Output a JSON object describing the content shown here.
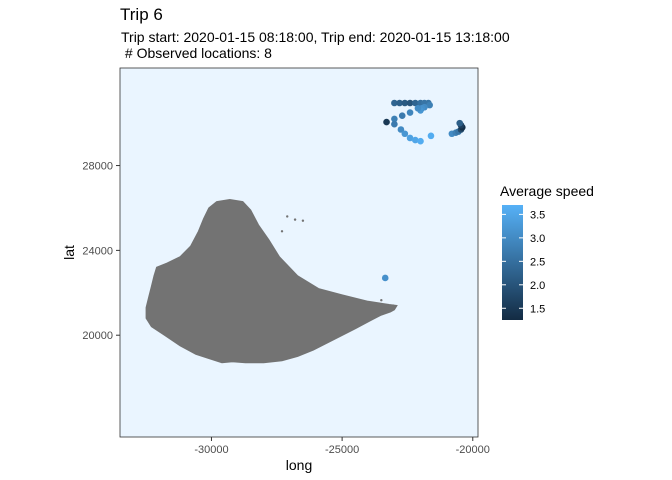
{
  "chart": {
    "title": "Trip 6",
    "subtitle_line1": "Trip start: 2020-01-15 08:18:00, Trip end: 2020-01-15 13:18:00",
    "subtitle_line2": " # Observed locations: 8"
  },
  "chart_data": {
    "type": "scatter",
    "title": "Trip 6",
    "subtitle": "Trip start: 2020-01-15 08:18:00, Trip end: 2020-01-15 13:18:00\n # Observed locations: 8",
    "xlabel": "long",
    "ylabel": "lat",
    "xlim": [
      -33500,
      -19800
    ],
    "ylim": [
      15200,
      32600
    ],
    "xticks": [
      -30000,
      -25000,
      -20000
    ],
    "yticks": [
      20000,
      24000,
      28000
    ],
    "panel_background": "#eaf5ff",
    "grid": false,
    "legend": {
      "title": "Average speed",
      "position": "right",
      "ticks": [
        1.5,
        2.0,
        2.5,
        3.0,
        3.5
      ],
      "range": [
        1.25,
        3.7
      ],
      "color_low": "#132b43",
      "color_high": "#56b1f7"
    },
    "land_color": "#737373",
    "points": [
      {
        "x": -23000,
        "y": 30950,
        "speed": 2.3
      },
      {
        "x": -22800,
        "y": 30950,
        "speed": 2.2
      },
      {
        "x": -22600,
        "y": 30950,
        "speed": 2.1
      },
      {
        "x": -22400,
        "y": 30950,
        "speed": 2.0
      },
      {
        "x": -22200,
        "y": 30950,
        "speed": 2.3
      },
      {
        "x": -22000,
        "y": 30950,
        "speed": 2.5
      },
      {
        "x": -21850,
        "y": 30950,
        "speed": 2.6
      },
      {
        "x": -21700,
        "y": 30950,
        "speed": 2.6
      },
      {
        "x": -21650,
        "y": 30850,
        "speed": 2.8
      },
      {
        "x": -21850,
        "y": 30750,
        "speed": 3.0
      },
      {
        "x": -21950,
        "y": 30700,
        "speed": 3.1
      },
      {
        "x": -22000,
        "y": 30600,
        "speed": 3.2
      },
      {
        "x": -22100,
        "y": 30700,
        "speed": 3.0
      },
      {
        "x": -22400,
        "y": 30500,
        "speed": 2.9
      },
      {
        "x": -22700,
        "y": 30350,
        "speed": 2.7
      },
      {
        "x": -23000,
        "y": 30200,
        "speed": 2.8
      },
      {
        "x": -23300,
        "y": 30050,
        "speed": 1.5
      },
      {
        "x": -23000,
        "y": 29950,
        "speed": 2.7
      },
      {
        "x": -22750,
        "y": 29700,
        "speed": 3.0
      },
      {
        "x": -22600,
        "y": 29500,
        "speed": 3.2
      },
      {
        "x": -22400,
        "y": 29300,
        "speed": 3.4
      },
      {
        "x": -22200,
        "y": 29200,
        "speed": 3.5
      },
      {
        "x": -22000,
        "y": 29150,
        "speed": 3.6
      },
      {
        "x": -21600,
        "y": 29400,
        "speed": 3.6
      },
      {
        "x": -20800,
        "y": 29500,
        "speed": 3.0
      },
      {
        "x": -20650,
        "y": 29550,
        "speed": 2.8
      },
      {
        "x": -20550,
        "y": 29600,
        "speed": 2.6
      },
      {
        "x": -20450,
        "y": 29700,
        "speed": 1.8
      },
      {
        "x": -20400,
        "y": 29800,
        "speed": 1.3
      },
      {
        "x": -20450,
        "y": 29900,
        "speed": 1.6
      },
      {
        "x": -20500,
        "y": 30000,
        "speed": 2.2
      },
      {
        "x": -23350,
        "y": 22700,
        "speed": 3.1
      }
    ],
    "land_outline": [
      [
        -29800,
        26300
      ],
      [
        -29300,
        26400
      ],
      [
        -28800,
        26300
      ],
      [
        -28500,
        25900
      ],
      [
        -28200,
        25200
      ],
      [
        -27800,
        24500
      ],
      [
        -27400,
        23700
      ],
      [
        -26700,
        22800
      ],
      [
        -25900,
        22200
      ],
      [
        -25000,
        21900
      ],
      [
        -24000,
        21600
      ],
      [
        -23200,
        21450
      ],
      [
        -22900,
        21400
      ],
      [
        -23000,
        21200
      ],
      [
        -23150,
        21100
      ],
      [
        -23500,
        20950
      ],
      [
        -23900,
        20700
      ],
      [
        -24500,
        20300
      ],
      [
        -25300,
        19800
      ],
      [
        -26100,
        19300
      ],
      [
        -26700,
        19000
      ],
      [
        -27300,
        18800
      ],
      [
        -28000,
        18700
      ],
      [
        -28700,
        18700
      ],
      [
        -29200,
        18750
      ],
      [
        -29600,
        18700
      ],
      [
        -30100,
        18900
      ],
      [
        -30600,
        19100
      ],
      [
        -31200,
        19500
      ],
      [
        -31800,
        20000
      ],
      [
        -32300,
        20400
      ],
      [
        -32500,
        20800
      ],
      [
        -32500,
        21300
      ],
      [
        -32400,
        21800
      ],
      [
        -32300,
        22300
      ],
      [
        -32200,
        22800
      ],
      [
        -32100,
        23200
      ],
      [
        -31700,
        23400
      ],
      [
        -31200,
        23700
      ],
      [
        -30800,
        24200
      ],
      [
        -30500,
        24900
      ],
      [
        -30300,
        25500
      ],
      [
        -30100,
        26000
      ]
    ],
    "islets": [
      [
        -27100,
        25600
      ],
      [
        -26800,
        25450
      ],
      [
        -26500,
        25400
      ],
      [
        -27300,
        24900
      ],
      [
        -23500,
        21650
      ],
      [
        -23050,
        21400
      ]
    ]
  }
}
